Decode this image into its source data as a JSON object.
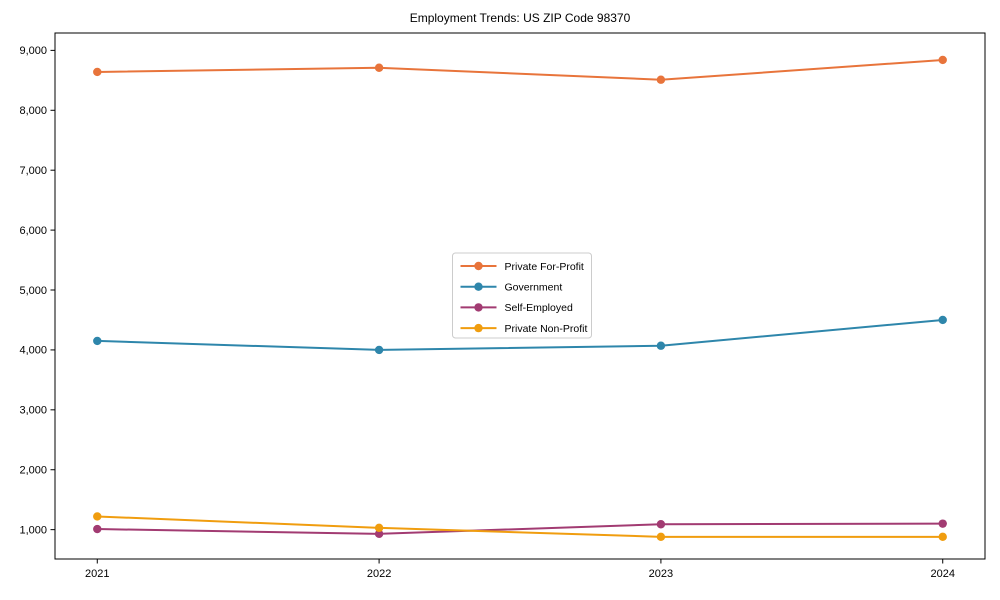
{
  "chart_data": {
    "type": "line",
    "title": "Employment Trends: US ZIP Code 98370",
    "xlabel": "",
    "ylabel": "",
    "x": [
      2021,
      2022,
      2023,
      2024
    ],
    "x_tick_labels": [
      "2021",
      "2022",
      "2023",
      "2024"
    ],
    "y_ticks": [
      1000,
      2000,
      3000,
      4000,
      5000,
      6000,
      7000,
      8000,
      9000
    ],
    "y_tick_labels": [
      "1,000",
      "2,000",
      "3,000",
      "4,000",
      "5,000",
      "6,000",
      "7,000",
      "8,000",
      "9,000"
    ],
    "xlim": [
      2020.85,
      2024.15
    ],
    "ylim": [
      510,
      9290
    ],
    "grid": false,
    "legend_position": "center",
    "series": [
      {
        "name": "Private For-Profit",
        "color": "#E8743B",
        "values": [
          8640,
          8710,
          8510,
          8840
        ]
      },
      {
        "name": "Government",
        "color": "#2E86AB",
        "values": [
          4150,
          4000,
          4070,
          4500
        ]
      },
      {
        "name": "Self-Employed",
        "color": "#A23B72",
        "values": [
          1010,
          930,
          1090,
          1100
        ]
      },
      {
        "name": "Private Non-Profit",
        "color": "#F09D0F",
        "values": [
          1220,
          1030,
          880,
          880
        ]
      }
    ],
    "style": {
      "axis_color": "#000000",
      "tick_label_color": "#000000",
      "legend_border_color": "#cccccc",
      "legend_background": "#ffffff"
    }
  }
}
